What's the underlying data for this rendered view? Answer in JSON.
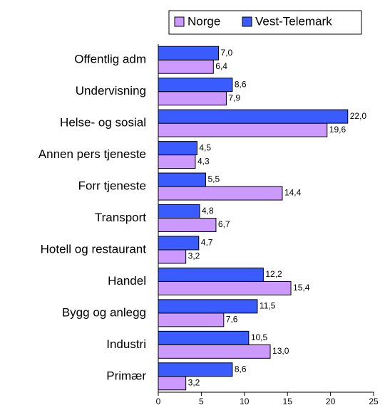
{
  "chart_data": {
    "type": "bar",
    "orientation": "horizontal",
    "categories": [
      "Offentlig adm",
      "Undervisning",
      "Helse- og sosial",
      "Annen pers tjeneste",
      "Forr tjeneste",
      "Transport",
      "Hotell og restaurant",
      "Handel",
      "Bygg og anlegg",
      "Industri",
      "Primær"
    ],
    "series": [
      {
        "name": "Norge",
        "color": "#cc99ff",
        "values": [
          6.4,
          7.9,
          19.6,
          4.3,
          14.4,
          6.7,
          3.2,
          15.4,
          7.6,
          13.0,
          3.2
        ],
        "value_labels": [
          "6,4",
          "7,9",
          "19,6",
          "4,3",
          "14,4",
          "6,7",
          "3,2",
          "15,4",
          "7,6",
          "13,0",
          "3,2"
        ]
      },
      {
        "name": "Vest-Telemark",
        "color": "#3a5cff",
        "values": [
          7.0,
          8.6,
          22.0,
          4.5,
          5.5,
          4.8,
          4.7,
          12.2,
          11.5,
          10.5,
          8.6
        ],
        "value_labels": [
          "7,0",
          "8,6",
          "22,0",
          "4,5",
          "5,5",
          "4,8",
          "4,7",
          "12,2",
          "11,5",
          "10,5",
          "8,6"
        ]
      }
    ],
    "xlim": [
      0,
      25
    ],
    "xticks": [
      0,
      5,
      10,
      15,
      20,
      25
    ]
  }
}
